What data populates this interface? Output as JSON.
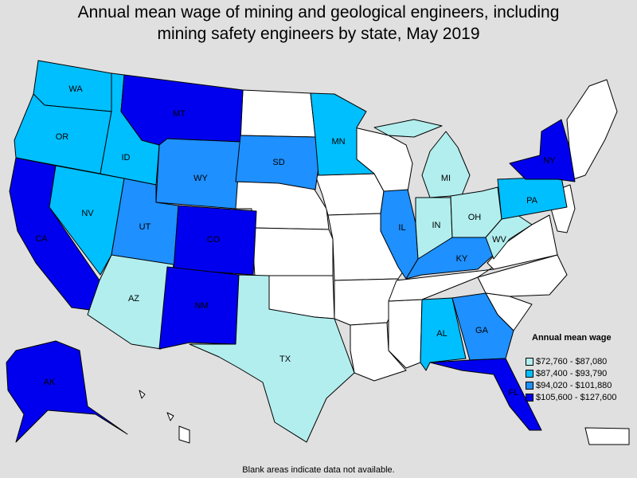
{
  "title_lines": [
    "Annual mean wage of mining and geological engineers, including",
    "mining safety engineers by state, May 2019"
  ],
  "legend": {
    "title": "Annual mean wage",
    "items": [
      {
        "label": "$72,760 - $87,080",
        "color": "#b2eeee"
      },
      {
        "label": "$87,400 - $93,790",
        "color": "#00bfff"
      },
      {
        "label": "$94,020 - $101,880",
        "color": "#1e90ff"
      },
      {
        "label": "$105,600 - $127,600",
        "color": "#0000ee"
      }
    ]
  },
  "blank_color": "#ffffff",
  "footnote": "Blank areas indicate data not available.",
  "states": [
    {
      "abbr": "WA",
      "bin": 1
    },
    {
      "abbr": "OR",
      "bin": 1
    },
    {
      "abbr": "CA",
      "bin": 3
    },
    {
      "abbr": "ID",
      "bin": 1
    },
    {
      "abbr": "NV",
      "bin": 1
    },
    {
      "abbr": "MT",
      "bin": 3
    },
    {
      "abbr": "WY",
      "bin": 2
    },
    {
      "abbr": "UT",
      "bin": 2
    },
    {
      "abbr": "AZ",
      "bin": 0
    },
    {
      "abbr": "CO",
      "bin": 3
    },
    {
      "abbr": "NM",
      "bin": 3
    },
    {
      "abbr": "TX",
      "bin": 0
    },
    {
      "abbr": "SD",
      "bin": 2
    },
    {
      "abbr": "MN",
      "bin": 1
    },
    {
      "abbr": "IL",
      "bin": 2
    },
    {
      "abbr": "MI",
      "bin": 0
    },
    {
      "abbr": "IN",
      "bin": 0
    },
    {
      "abbr": "OH",
      "bin": 0
    },
    {
      "abbr": "KY",
      "bin": 2
    },
    {
      "abbr": "WV",
      "bin": 0
    },
    {
      "abbr": "PA",
      "bin": 1
    },
    {
      "abbr": "NY",
      "bin": 3
    },
    {
      "abbr": "AL",
      "bin": 1
    },
    {
      "abbr": "GA",
      "bin": 2
    },
    {
      "abbr": "FL",
      "bin": 3
    },
    {
      "abbr": "AK",
      "bin": 3
    }
  ]
}
